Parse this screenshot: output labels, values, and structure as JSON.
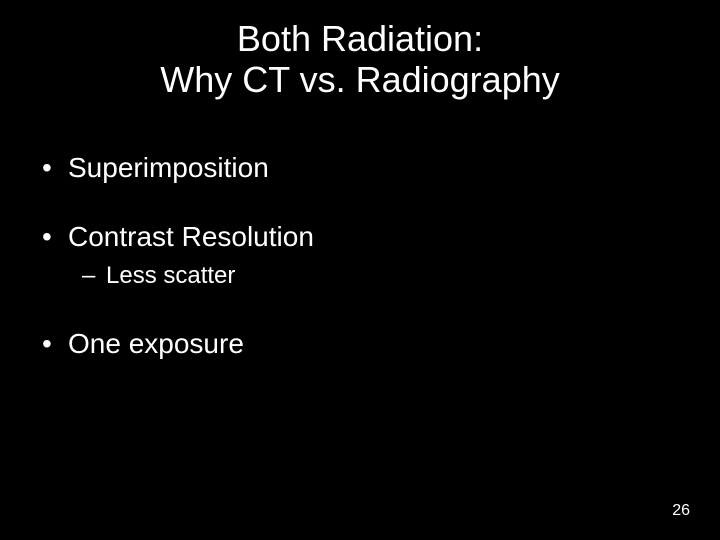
{
  "slide": {
    "background_color": "#000000",
    "text_color": "#ffffff",
    "title_line1": "Both Radiation:",
    "title_line2": "Why CT vs. Radiography",
    "title_fontsize": 36,
    "bullets": {
      "b1": "Superimposition",
      "b2": "Contrast Resolution",
      "b2_sub1": "Less scatter",
      "b3": "One exposure"
    },
    "bullet_l1_fontsize": 28,
    "bullet_l2_fontsize": 24,
    "page_number": "26",
    "page_number_fontsize": 16
  }
}
